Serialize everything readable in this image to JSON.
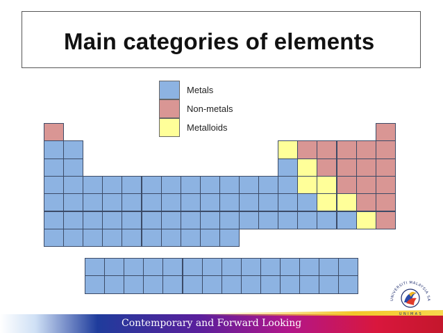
{
  "slide": {
    "title": "Main categories of elements"
  },
  "legend": [
    {
      "label": "Metals",
      "color": "#8db3e2"
    },
    {
      "label": "Non-metals",
      "color": "#d99694"
    },
    {
      "label": "Metalloids",
      "color": "#ffff99"
    }
  ],
  "colors": {
    "M": "#8db3e2",
    "N": "#d99694",
    "L": "#ffff99"
  },
  "main_table": [
    "N.................N",
    "MM..........LNNNNN",
    "MM..........MLNNNN",
    "MMMMMMMMMMMMMLLNNN",
    "MMMMMMMMMMMMMMLLNN",
    "MMMMMMMMMMMMMMMMLN",
    "MMMMMMMMMM........"
  ],
  "f_block": [
    "MMMMMMMMMMMMMM",
    "MMMMMMMMMMMMMM"
  ],
  "footer": {
    "tagline": "Contemporary and Forward Looking"
  },
  "logo": {
    "name": "UNIVERSITI MALAYSIA SARAWAK",
    "short": "U N I M A S"
  }
}
